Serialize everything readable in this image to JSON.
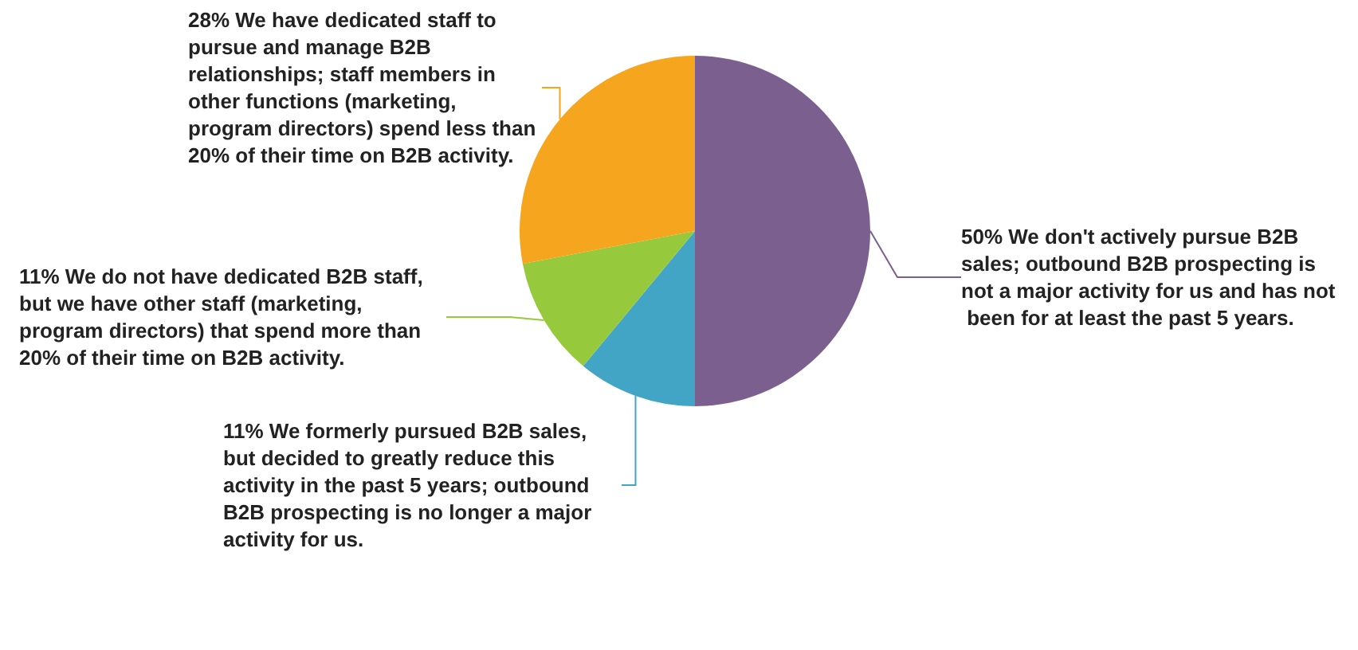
{
  "chart_data": {
    "type": "pie",
    "categories": [
      "We don't actively pursue B2B sales; outbound B2B prospecting is not a major activity for us and has not been for at least the past 5 years.",
      "We formerly pursued B2B sales, but decided to greatly reduce this activity in the past 5 years; outbound B2B prospecting is no longer a major activity for us.",
      "We do not have dedicated B2B staff, but we have other staff (marketing, program directors) that spend more than 20% of their time on B2B activity.",
      "We have dedicated staff to pursue and manage B2B relationships; staff members in other functions (marketing, program directors) spend less than 20% of their time on B2B activity."
    ],
    "values": [
      50,
      11,
      11,
      28
    ],
    "value_labels": [
      "50%",
      "11%",
      "11%",
      "28%"
    ],
    "colors": [
      "#7b5f8f",
      "#42a5c6",
      "#97c93c",
      "#f5a61e"
    ],
    "legend": false
  }
}
